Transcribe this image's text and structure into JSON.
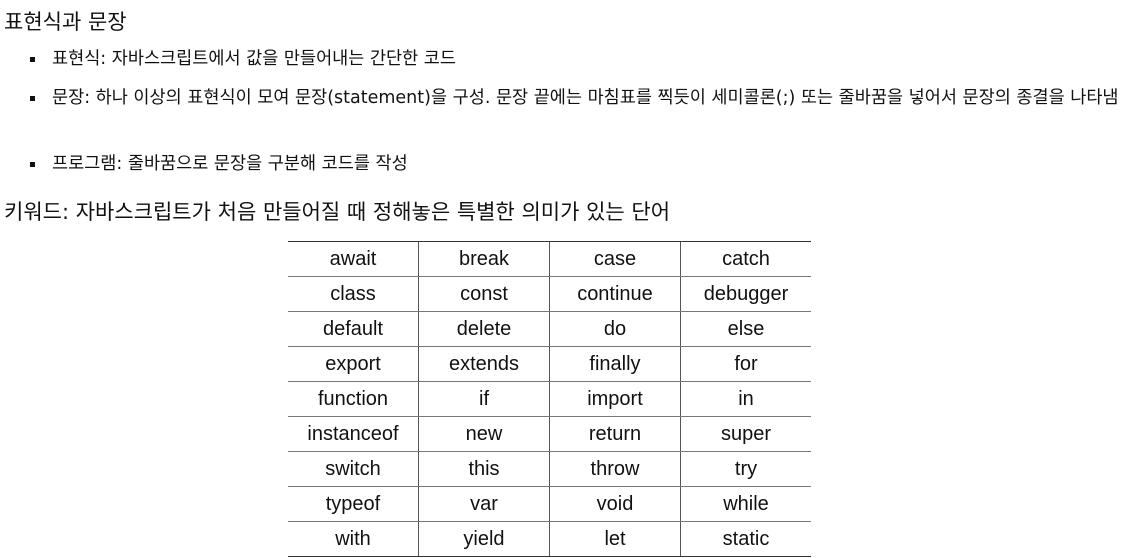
{
  "title": "표현식과 문장",
  "bullets": [
    "표현식: 자바스크립트에서 값을 만들어내는 간단한 코드",
    "문장: 하나 이상의 표현식이 모여 문장(statement)을 구성. 문장 끝에는 마침표를 찍듯이 세미콜론(;) 또는 줄바꿈을 넣어서 문장의 종결을 나타냄",
    "프로그램: 줄바꿈으로 문장을 구분해 코드를 작성"
  ],
  "keyword_heading": "키워드: 자바스크립트가 처음 만들어질 때 정해놓은 특별한 의미가 있는 단어",
  "keywords": [
    [
      "await",
      "break",
      "case",
      "catch"
    ],
    [
      "class",
      "const",
      "continue",
      "debugger"
    ],
    [
      "default",
      "delete",
      "do",
      "else"
    ],
    [
      "export",
      "extends",
      "finally",
      "for"
    ],
    [
      "function",
      "if",
      "import",
      "in"
    ],
    [
      "instanceof",
      "new",
      "return",
      "super"
    ],
    [
      "switch",
      "this",
      "throw",
      "try"
    ],
    [
      "typeof",
      "var",
      "void",
      "while"
    ],
    [
      "with",
      "yield",
      "let",
      "static"
    ]
  ]
}
